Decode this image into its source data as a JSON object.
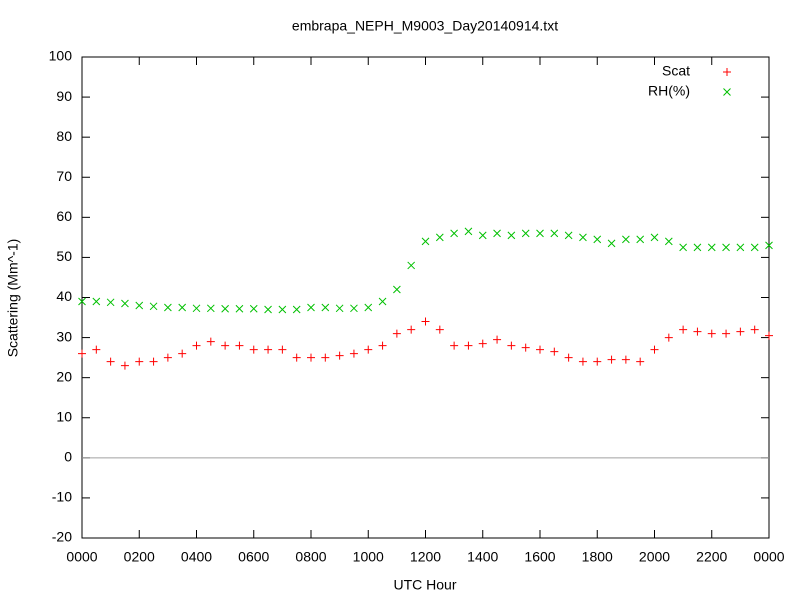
{
  "chart_data": {
    "type": "scatter",
    "title": "embrapa_NEPH_M9003_Day20140914.txt",
    "xlabel": "UTC Hour",
    "ylabel": "Scattering (Mm^-1)",
    "x": [
      0,
      0.5,
      1,
      1.5,
      2,
      2.5,
      3,
      3.5,
      4,
      4.5,
      5,
      5.5,
      6,
      6.5,
      7,
      7.5,
      8,
      8.5,
      9,
      9.5,
      10,
      10.5,
      11,
      11.5,
      12,
      12.5,
      13,
      13.5,
      14,
      14.5,
      15,
      15.5,
      16,
      16.5,
      17,
      17.5,
      18,
      18.5,
      19,
      19.5,
      20,
      20.5,
      21,
      21.5,
      22,
      22.5,
      23,
      23.5,
      24
    ],
    "series": [
      {
        "name": "Scat",
        "color": "#ff0000",
        "marker": "plus",
        "values": [
          26,
          27,
          24,
          23,
          24,
          24,
          25,
          26,
          28,
          29,
          28,
          28,
          27,
          27,
          27,
          25,
          25,
          25,
          25.5,
          26,
          27,
          28,
          31,
          32,
          34,
          32,
          28,
          28,
          28.5,
          29.5,
          28,
          27.5,
          27,
          26.5,
          25,
          24,
          24,
          24.5,
          24.5,
          24,
          27,
          30,
          32,
          31.5,
          31,
          31,
          31.5,
          32,
          30.5
        ]
      },
      {
        "name": "RH(%)",
        "color": "#00c000",
        "marker": "cross",
        "values": [
          39,
          39,
          38.8,
          38.5,
          38,
          37.8,
          37.5,
          37.5,
          37.3,
          37.3,
          37.2,
          37.2,
          37.2,
          37,
          37,
          37,
          37.5,
          37.5,
          37.3,
          37.3,
          37.5,
          39,
          42,
          48,
          54,
          55,
          56,
          56.5,
          55.5,
          56,
          55.5,
          56,
          56,
          56,
          55.5,
          55,
          54.5,
          53.5,
          54.5,
          54.5,
          55,
          54,
          52.5,
          52.5,
          52.5,
          52.5,
          52.5,
          52.5,
          53
        ]
      }
    ],
    "xlim": [
      0,
      24
    ],
    "xticks": [
      {
        "value": 0,
        "label": "0000"
      },
      {
        "value": 2,
        "label": "0200"
      },
      {
        "value": 4,
        "label": "0400"
      },
      {
        "value": 6,
        "label": "0600"
      },
      {
        "value": 8,
        "label": "0800"
      },
      {
        "value": 10,
        "label": "1000"
      },
      {
        "value": 12,
        "label": "1200"
      },
      {
        "value": 14,
        "label": "1400"
      },
      {
        "value": 16,
        "label": "1600"
      },
      {
        "value": 18,
        "label": "1800"
      },
      {
        "value": 20,
        "label": "2000"
      },
      {
        "value": 22,
        "label": "2200"
      },
      {
        "value": 24,
        "label": "0000"
      }
    ],
    "ylim": [
      -20,
      100
    ],
    "yticks": [
      -20,
      -10,
      0,
      10,
      20,
      30,
      40,
      50,
      60,
      70,
      80,
      90,
      100
    ],
    "zero_line": true,
    "legend": "top-right"
  }
}
